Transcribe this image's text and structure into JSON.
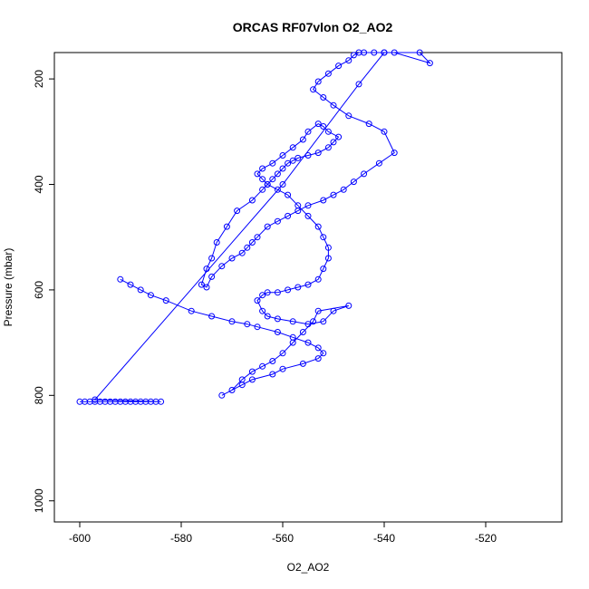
{
  "chart_data": {
    "type": "line",
    "title": "ORCAS RF07vlon O2_AO2",
    "xlabel": "O2_AO2",
    "ylabel": "Pressure (mbar)",
    "xlim": [
      -605,
      -505
    ],
    "ylim": [
      1040,
      150
    ],
    "y_inverted": true,
    "grid": false,
    "color": "#0000ff",
    "x_ticks": [
      -600,
      -580,
      -560,
      -540,
      -520
    ],
    "y_ticks": [
      200,
      400,
      600,
      800,
      1000
    ],
    "series": [
      {
        "marker": "open-circle",
        "x": [
          -600,
          -599,
          -598,
          -597,
          -596,
          -595,
          -594,
          -593,
          -592,
          -591,
          -590,
          -589,
          -588,
          -587,
          -586,
          -585,
          -584,
          -597,
          -560,
          -545,
          -540,
          -533,
          -531,
          -538,
          -540,
          -542,
          -544,
          -545,
          -546,
          -547,
          -549,
          -551,
          -553,
          -554,
          -552,
          -550,
          -547,
          -543,
          -540,
          -538,
          -541,
          -544,
          -546,
          -548,
          -550,
          -552,
          -555,
          -557,
          -559,
          -561,
          -563,
          -565,
          -566,
          -567,
          -568,
          -570,
          -572,
          -574,
          -575,
          -576,
          -575,
          -574,
          -573,
          -571,
          -569,
          -566,
          -564,
          -563,
          -562,
          -561,
          -560,
          -559,
          -558,
          -557,
          -555,
          -553,
          -551,
          -550,
          -549,
          -551,
          -552,
          -553,
          -555,
          -556,
          -558,
          -560,
          -562,
          -564,
          -565,
          -564,
          -563,
          -561,
          -559,
          -557,
          -555,
          -553,
          -552,
          -551,
          -551,
          -552,
          -553,
          -555,
          -557,
          -559,
          -561,
          -563,
          -564,
          -565,
          -564,
          -563,
          -561,
          -558,
          -555,
          -552,
          -550,
          -547,
          -553,
          -554,
          -556,
          -558,
          -560,
          -562,
          -564,
          -566,
          -568,
          -570,
          -572,
          -568,
          -566,
          -562,
          -560,
          -556,
          -553,
          -552,
          -553,
          -555,
          -558,
          -561,
          -565,
          -567,
          -570,
          -574,
          -578,
          -583,
          -586,
          -588,
          -590,
          -592
        ],
        "y": [
          812,
          812,
          812,
          812,
          812,
          812,
          812,
          812,
          812,
          812,
          812,
          812,
          812,
          812,
          812,
          812,
          812,
          808,
          400,
          210,
          150,
          150,
          170,
          150,
          150,
          150,
          150,
          150,
          155,
          165,
          175,
          190,
          205,
          220,
          235,
          250,
          270,
          285,
          300,
          340,
          360,
          380,
          395,
          410,
          420,
          430,
          440,
          450,
          460,
          470,
          480,
          500,
          510,
          520,
          530,
          540,
          555,
          575,
          595,
          590,
          560,
          540,
          510,
          480,
          450,
          430,
          410,
          400,
          390,
          380,
          370,
          360,
          355,
          350,
          345,
          340,
          330,
          320,
          310,
          300,
          290,
          285,
          300,
          315,
          330,
          345,
          360,
          370,
          380,
          390,
          400,
          410,
          420,
          440,
          460,
          480,
          500,
          520,
          540,
          560,
          580,
          590,
          595,
          600,
          605,
          605,
          610,
          620,
          640,
          650,
          655,
          660,
          665,
          660,
          640,
          630,
          640,
          660,
          680,
          700,
          720,
          735,
          745,
          755,
          770,
          790,
          800,
          780,
          770,
          760,
          750,
          740,
          730,
          720,
          710,
          700,
          690,
          680,
          670,
          665,
          660,
          650,
          640,
          620,
          610,
          600,
          590,
          580
        ]
      }
    ]
  }
}
